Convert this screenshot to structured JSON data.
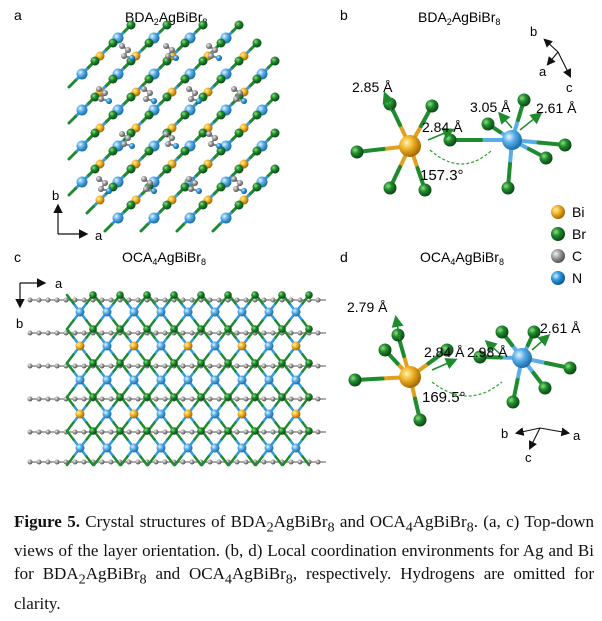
{
  "panels": {
    "a": {
      "letter": "a",
      "title_prefix": "BDA",
      "title_sub": "2",
      "title_suffix": "AgBiBr",
      "title_sub2": "8",
      "axis_y": "b",
      "axis_x": "a"
    },
    "b": {
      "letter": "b",
      "title_prefix": "BDA",
      "title_sub": "2",
      "title_suffix": "AgBiBr",
      "title_sub2": "8",
      "labels": {
        "l1": "2.85 Å",
        "l2": "2.84 Å",
        "l3": "3.05 Å",
        "l4": "2.61 Å",
        "angle": "157.3°"
      },
      "axes": {
        "b": "b",
        "a": "a",
        "c": "c"
      }
    },
    "c": {
      "letter": "c",
      "title_prefix": "OCA",
      "title_sub": "4",
      "title_suffix": "AgBiBr",
      "title_sub2": "8",
      "axis_x": "a",
      "axis_y": "b"
    },
    "d": {
      "letter": "d",
      "title_prefix": "OCA",
      "title_sub": "4",
      "title_suffix": "AgBiBr",
      "title_sub2": "8",
      "labels": {
        "l1": "2.79 Å",
        "l2": "2.84 Å",
        "l3": "2.98 Å",
        "l4": "2.61 Å",
        "angle": "169.5°"
      },
      "axes": {
        "b": "b",
        "a": "a",
        "c": "c"
      }
    }
  },
  "legend": [
    {
      "label": "Bi",
      "color": "#f0b429"
    },
    {
      "label": "Br",
      "color": "#1f8a2e"
    },
    {
      "label": "C",
      "color": "#9a9a9a"
    },
    {
      "label": "N",
      "color": "#2f9be0"
    }
  ],
  "caption": {
    "label": "Figure 5.",
    "t1": " Crystal structures of BDA",
    "s1": "2",
    "t2": "AgBiBr",
    "s2": "8",
    "t3": " and OCA",
    "s3": "4",
    "t4": "AgBiBr",
    "s4": "8",
    "t5": ". (a, c) Top-down views of the layer orientation. (b, d) Local coordination environments for Ag and Bi for BDA",
    "s5": "2",
    "t6": "AgBiBr",
    "s6": "8",
    "t7": " and OCA",
    "s7": "4",
    "t8": "AgBiBr",
    "s8": "8",
    "t9": ", respectively. Hydrogens are omitted for clarity."
  }
}
